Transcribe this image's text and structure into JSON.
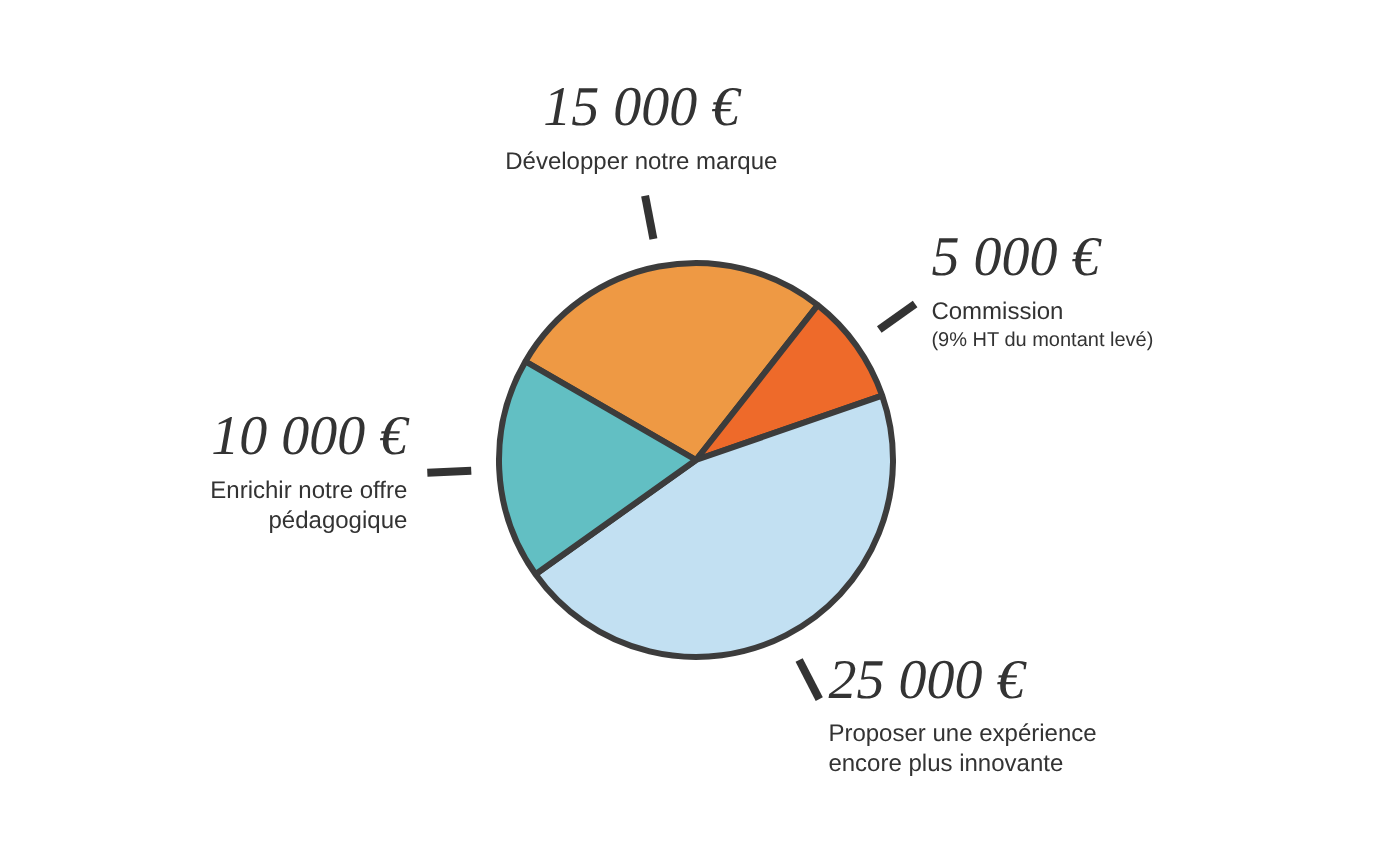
{
  "chart_data": {
    "type": "pie",
    "categories": [
      "Développer notre marque",
      "Commission",
      "Proposer une expérience encore plus innovante",
      "Enrichir notre offre pédagogique"
    ],
    "values": [
      15000,
      5000,
      25000,
      10000
    ],
    "value_labels": [
      "15 000 €",
      "5 000 €",
      "25 000 €",
      "10 000 €"
    ],
    "colors": [
      "#ee9944",
      "#ee6a2a",
      "#c2e0f2",
      "#62bfc3"
    ],
    "annotations": [
      "(9% HT du montant levé)"
    ],
    "legend": false
  }
}
